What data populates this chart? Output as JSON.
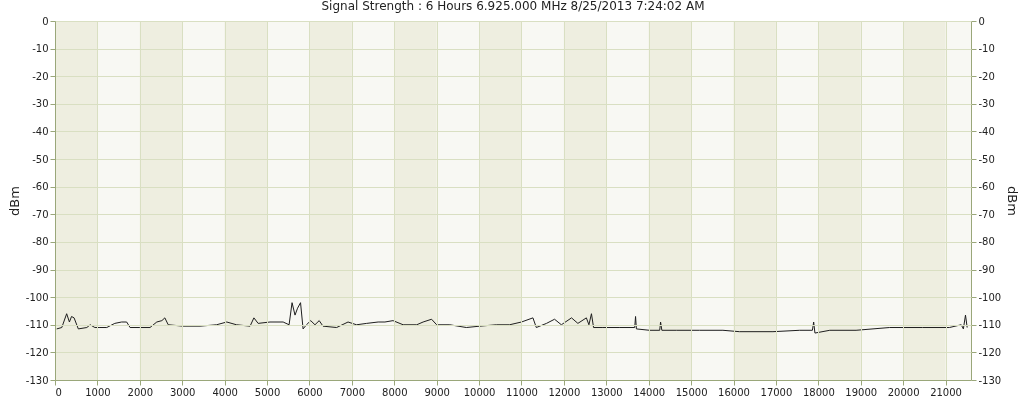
{
  "chart_data": {
    "type": "line",
    "title": "Signal Strength : 6 Hours   6.925.000 MHz   8/25/2013 7:24:02 AM",
    "ylabel": "dBm",
    "y2label": "dBm",
    "x": [
      40,
      160,
      275,
      340,
      390,
      450,
      550,
      750,
      830,
      940,
      1060,
      1220,
      1410,
      1570,
      1690,
      1770,
      2000,
      2240,
      2400,
      2520,
      2590,
      2670,
      3020,
      3420,
      3810,
      4050,
      4280,
      4600,
      4690,
      4790,
      5070,
      5380,
      5520,
      5590,
      5660,
      5720,
      5790,
      5850,
      5930,
      6030,
      6130,
      6230,
      6320,
      6640,
      6910,
      7110,
      7350,
      7620,
      7780,
      7970,
      8210,
      8530,
      8680,
      8880,
      9000,
      9310,
      9700,
      10020,
      10410,
      10720,
      11000,
      11270,
      11350,
      11590,
      11780,
      11940,
      12180,
      12330,
      12530,
      12590,
      12650,
      12700,
      12920,
      13320,
      13670,
      13690,
      13710,
      14020,
      14260,
      14280,
      14310,
      14650,
      15200,
      15750,
      16140,
      16930,
      17560,
      17860,
      17890,
      17920,
      18270,
      18890,
      19680,
      20460,
      21090,
      21370,
      21420,
      21470,
      21510
    ],
    "series": [
      {
        "color": "#1e1e1e",
        "values": [
          -111.5,
          -111,
          -106,
          -109,
          -107,
          -107.5,
          -111.5,
          -111,
          -110,
          -111,
          -111,
          -111,
          -109.5,
          -109,
          -109,
          -111,
          -111,
          -111,
          -109,
          -108.5,
          -107.5,
          -110,
          -110.5,
          -110.5,
          -110,
          -109,
          -110,
          -110.5,
          -107.5,
          -109.5,
          -109,
          -109,
          -110,
          -102,
          -106.5,
          -104,
          -102,
          -111.5,
          -110,
          -108.5,
          -110,
          -108.5,
          -110.5,
          -111,
          -109,
          -110,
          -109.5,
          -109,
          -109,
          -108.5,
          -110,
          -110,
          -109,
          -108,
          -110,
          -110,
          -111,
          -110.5,
          -110,
          -110,
          -109,
          -107.5,
          -111,
          -109.5,
          -108,
          -110,
          -107.5,
          -109.5,
          -107.5,
          -110,
          -106,
          -111,
          -111,
          -111,
          -111,
          -107,
          -111.5,
          -112,
          -112,
          -109,
          -112,
          -112,
          -112,
          -112,
          -112.5,
          -112.5,
          -112,
          -112,
          -109,
          -113,
          -112,
          -112,
          -111,
          -111,
          -111,
          -110,
          -111.5,
          -106.5,
          -111
        ]
      }
    ],
    "xlim": [
      0,
      21600
    ],
    "xticks": [
      0,
      1000,
      2000,
      3000,
      4000,
      5000,
      6000,
      7000,
      8000,
      9000,
      10000,
      11000,
      12000,
      13000,
      14000,
      15000,
      16000,
      17000,
      18000,
      19000,
      20000,
      21000
    ],
    "ylim": [
      -130,
      0
    ],
    "yticks": [
      -130,
      -120,
      -110,
      -100,
      -90,
      -80,
      -70,
      -60,
      -50,
      -40,
      -30,
      -20,
      -10,
      0
    ],
    "y2lim": [
      -130,
      0
    ],
    "y2ticks": [
      -130,
      -120,
      -110,
      -100,
      -90,
      -80,
      -70,
      -60,
      -50,
      -40,
      -30,
      -20,
      -10,
      0
    ],
    "bands": [
      {
        "axis": "x",
        "from": 0,
        "to": 1000,
        "color": "#eeeee0"
      },
      {
        "axis": "x",
        "from": 2000,
        "to": 3000,
        "color": "#eeeee0"
      },
      {
        "axis": "x",
        "from": 4000,
        "to": 5000,
        "color": "#eeeee0"
      },
      {
        "axis": "x",
        "from": 6000,
        "to": 7000,
        "color": "#eeeee0"
      },
      {
        "axis": "x",
        "from": 8000,
        "to": 9000,
        "color": "#eeeee0"
      },
      {
        "axis": "x",
        "from": 10000,
        "to": 11000,
        "color": "#eeeee0"
      },
      {
        "axis": "x",
        "from": 12000,
        "to": 13000,
        "color": "#eeeee0"
      },
      {
        "axis": "x",
        "from": 14000,
        "to": 15000,
        "color": "#eeeee0"
      },
      {
        "axis": "x",
        "from": 16000,
        "to": 17000,
        "color": "#eeeee0"
      },
      {
        "axis": "x",
        "from": 18000,
        "to": 19000,
        "color": "#eeeee0"
      },
      {
        "axis": "x",
        "from": 20000,
        "to": 21000,
        "color": "#eeeee0"
      }
    ],
    "grid": true,
    "line_style": "solid",
    "marker": "none"
  }
}
